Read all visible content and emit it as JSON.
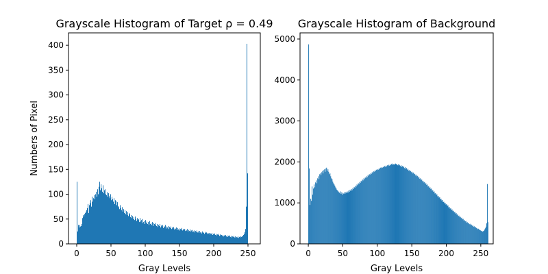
{
  "figure": {
    "background": "#ffffff",
    "bar_color": "#1f77b4"
  },
  "chart_data": [
    {
      "type": "bar",
      "title": "Grayscale Histogram of Target  ρ = 0.49",
      "xlabel": "Gray Levels",
      "ylabel": "Numbers of Pixel",
      "xlim": [
        -12,
        268
      ],
      "ylim": [
        0,
        425
      ],
      "xticks": [
        0,
        50,
        100,
        150,
        200,
        250
      ],
      "yticks": [
        0,
        50,
        100,
        150,
        200,
        250,
        300,
        350,
        400
      ],
      "grid": false,
      "bins": "0-255",
      "values": [
        125,
        25,
        38,
        33,
        38,
        35,
        36,
        40,
        52,
        58,
        55,
        60,
        62,
        65,
        68,
        72,
        80,
        62,
        78,
        82,
        88,
        75,
        95,
        85,
        92,
        98,
        90,
        100,
        105,
        95,
        110,
        100,
        115,
        125,
        108,
        120,
        112,
        105,
        118,
        102,
        108,
        110,
        100,
        98,
        104,
        95,
        102,
        96,
        92,
        100,
        88,
        95,
        90,
        85,
        92,
        80,
        88,
        86,
        78,
        84,
        76,
        74,
        70,
        78,
        72,
        68,
        74,
        65,
        70,
        62,
        68,
        60,
        66,
        58,
        64,
        56,
        62,
        60,
        54,
        58,
        52,
        56,
        50,
        54,
        48,
        55,
        50,
        46,
        52,
        48,
        50,
        44,
        52,
        45,
        48,
        42,
        50,
        44,
        46,
        40,
        48,
        42,
        45,
        40,
        44,
        38,
        46,
        40,
        42,
        38,
        44,
        36,
        42,
        40,
        38,
        42,
        36,
        40,
        34,
        38,
        36,
        40,
        33,
        37,
        35,
        38,
        32,
        36,
        34,
        38,
        31,
        35,
        33,
        36,
        30,
        34,
        32,
        35,
        30,
        33,
        31,
        34,
        29,
        32,
        30,
        33,
        28,
        32,
        29,
        31,
        27,
        30,
        29,
        32,
        27,
        30,
        28,
        30,
        26,
        29,
        27,
        30,
        25,
        28,
        26,
        29,
        25,
        27,
        24,
        28,
        25,
        27,
        23,
        26,
        24,
        27,
        23,
        25,
        22,
        26,
        23,
        24,
        21,
        25,
        22,
        23,
        20,
        24,
        22,
        23,
        20,
        22,
        21,
        22,
        19,
        21,
        20,
        22,
        18,
        20,
        19,
        21,
        18,
        20,
        17,
        19,
        18,
        20,
        16,
        19,
        17,
        18,
        16,
        18,
        15,
        17,
        16,
        18,
        15,
        17,
        14,
        16,
        15,
        17,
        14,
        16,
        13,
        15,
        14,
        16,
        13,
        15,
        12,
        14,
        13,
        15,
        12,
        14,
        13,
        15,
        14,
        16,
        15,
        18,
        20,
        24,
        30,
        75,
        403,
        142
      ]
    },
    {
      "type": "bar",
      "title": "Grayscale Histogram of Background",
      "xlabel": "Gray Levels",
      "ylabel": "",
      "xlim": [
        -12,
        268
      ],
      "ylim": [
        0,
        5150
      ],
      "xticks": [
        0,
        50,
        100,
        150,
        200,
        250
      ],
      "yticks": [
        0,
        1000,
        2000,
        3000,
        4000,
        5000
      ],
      "grid": false,
      "bins": "0-255",
      "values": [
        4870,
        1840,
        950,
        1100,
        1050,
        1400,
        1200,
        1350,
        1450,
        1380,
        1500,
        1550,
        1480,
        1600,
        1650,
        1580,
        1700,
        1720,
        1680,
        1750,
        1780,
        1720,
        1800,
        1820,
        1760,
        1840,
        1860,
        1780,
        1820,
        1760,
        1700,
        1720,
        1650,
        1600,
        1580,
        1520,
        1480,
        1450,
        1420,
        1380,
        1350,
        1320,
        1300,
        1280,
        1260,
        1240,
        1280,
        1220,
        1260,
        1200,
        1240,
        1220,
        1260,
        1230,
        1270,
        1240,
        1280,
        1250,
        1300,
        1270,
        1320,
        1290,
        1340,
        1310,
        1360,
        1340,
        1390,
        1370,
        1420,
        1400,
        1450,
        1430,
        1480,
        1460,
        1510,
        1490,
        1540,
        1520,
        1570,
        1550,
        1600,
        1580,
        1620,
        1610,
        1650,
        1630,
        1680,
        1660,
        1700,
        1690,
        1720,
        1710,
        1750,
        1730,
        1770,
        1760,
        1790,
        1780,
        1810,
        1800,
        1820,
        1810,
        1840,
        1830,
        1860,
        1850,
        1870,
        1860,
        1880,
        1870,
        1900,
        1880,
        1910,
        1890,
        1920,
        1900,
        1930,
        1910,
        1940,
        1920,
        1950,
        1930,
        1960,
        1940,
        1950,
        1930,
        1960,
        1940,
        1950,
        1920,
        1940,
        1910,
        1930,
        1900,
        1920,
        1880,
        1900,
        1870,
        1890,
        1850,
        1870,
        1830,
        1850,
        1810,
        1830,
        1790,
        1800,
        1770,
        1780,
        1750,
        1760,
        1720,
        1740,
        1700,
        1710,
        1670,
        1690,
        1650,
        1660,
        1620,
        1630,
        1590,
        1600,
        1560,
        1570,
        1530,
        1540,
        1500,
        1510,
        1470,
        1480,
        1440,
        1450,
        1400,
        1410,
        1370,
        1380,
        1340,
        1350,
        1300,
        1310,
        1270,
        1280,
        1230,
        1240,
        1200,
        1210,
        1160,
        1170,
        1130,
        1140,
        1090,
        1100,
        1060,
        1070,
        1020,
        1030,
        990,
        1000,
        960,
        970,
        930,
        940,
        890,
        900,
        860,
        870,
        830,
        840,
        800,
        810,
        770,
        780,
        740,
        750,
        710,
        720,
        680,
        690,
        650,
        660,
        630,
        640,
        600,
        610,
        570,
        580,
        550,
        560,
        520,
        530,
        500,
        510,
        480,
        490,
        460,
        470,
        440,
        450,
        420,
        430,
        400,
        410,
        390,
        380,
        360,
        370,
        350,
        340,
        330,
        320,
        310,
        300,
        310,
        320,
        350,
        380,
        420,
        500,
        1460,
        530
      ]
    }
  ]
}
